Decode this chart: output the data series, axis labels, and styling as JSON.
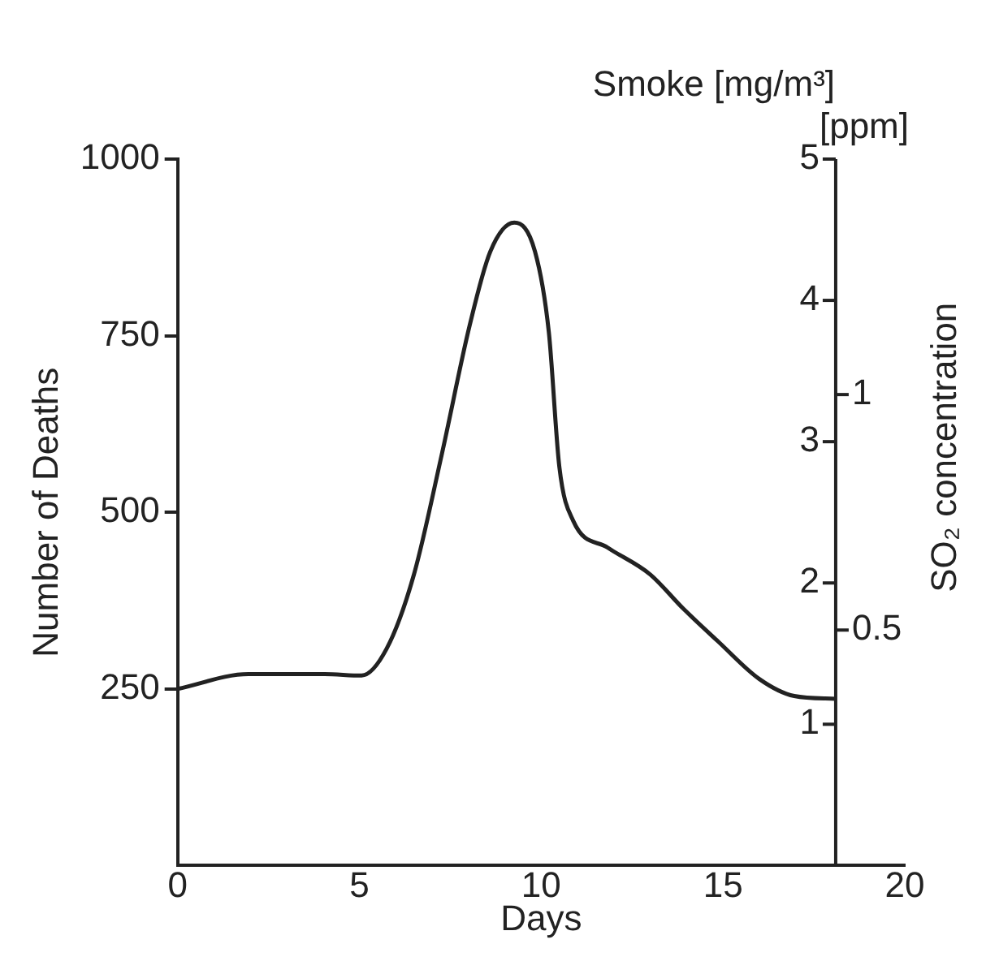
{
  "chart_data": {
    "type": "line",
    "xlabel": "Days",
    "ylabel": "Number of Deaths",
    "y2label": "Smoke [mg/m³]",
    "y3label": "SO₂ concentration",
    "annotations": [
      "[ppm]"
    ],
    "xlim": [
      0,
      20
    ],
    "xticks": [
      0,
      5,
      10,
      15,
      20
    ],
    "ylim": [
      0,
      1000
    ],
    "yticks": [
      250,
      500,
      750,
      1000
    ],
    "y2lim": [
      0,
      5
    ],
    "y2ticks": [
      1,
      2,
      3,
      4,
      5
    ],
    "y3lim": [
      0,
      1.5
    ],
    "y3ticks": [
      0.5,
      1
    ],
    "grid": false,
    "legend": false,
    "marker": "none",
    "line_style": "solid",
    "series": [
      {
        "color": "#222222",
        "x": [
          0,
          1.95,
          4.04,
          5.06,
          5.75,
          6.5,
          7.27,
          8.03,
          8.6,
          9.26,
          9.83,
          10.21,
          10.5,
          10.88,
          11.83,
          13,
          13.9,
          14.87,
          16,
          16.96,
          18.1
        ],
        "values": [
          250,
          271,
          271,
          269,
          307,
          412,
          583,
          764,
          869,
          910,
          869,
          755,
          564,
          488,
          450,
          412,
          364,
          317,
          264,
          240,
          236
        ]
      }
    ]
  }
}
